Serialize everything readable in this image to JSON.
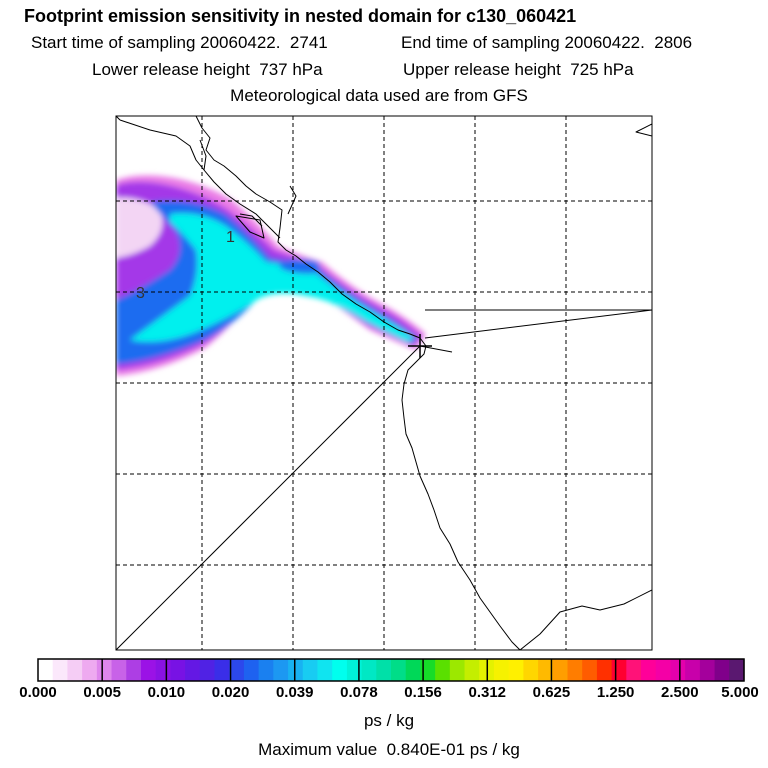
{
  "header": {
    "title": "Footprint emission sensitivity in nested domain for c130_060421",
    "start_time": "Start time of sampling 20060422.  2741",
    "end_time": "End time of sampling 20060422.  2806",
    "lower_height": "Lower release height  737 hPa",
    "upper_height": "Upper release height  725 hPa",
    "met_data": "Meteorological data used are from GFS"
  },
  "map": {
    "contour_labels": [
      "1",
      "3"
    ],
    "release_marker": "plus-marker"
  },
  "colorbar": {
    "tick_labels": [
      "0.000",
      "0.005",
      "0.010",
      "0.020",
      "0.039",
      "0.078",
      "0.156",
      "0.312",
      "0.625",
      "1.250",
      "2.500",
      "5.000"
    ],
    "colors": [
      "#ffffff",
      "#fbe8fb",
      "#f5cdf5",
      "#eeaaf0",
      "#de86ec",
      "#c862e8",
      "#ad3ee4",
      "#9b12e6",
      "#8a12e4",
      "#7812e4",
      "#6418e4",
      "#5022e4",
      "#3a2ee8",
      "#2c48ec",
      "#1e62f0",
      "#1a80f0",
      "#1c98f2",
      "#18b2f2",
      "#18ccf2",
      "#10e4f0",
      "#00ffee",
      "#00f2d8",
      "#00e8c4",
      "#00e0a8",
      "#00dd88",
      "#00d858",
      "#16dc28",
      "#5ae000",
      "#9ce800",
      "#c4ee00",
      "#e4f200",
      "#f6f200",
      "#fff000",
      "#ffd600",
      "#ffba00",
      "#ff9e00",
      "#ff7d00",
      "#ff5c00",
      "#ff3000",
      "#ff0030",
      "#ff1278",
      "#ff0099",
      "#f400a6",
      "#e400ac",
      "#c800aa",
      "#a4009c",
      "#80008a",
      "#5a1870"
    ],
    "unit": "ps / kg",
    "max_value": "Maximum value  0.840E-01 ps / kg"
  }
}
